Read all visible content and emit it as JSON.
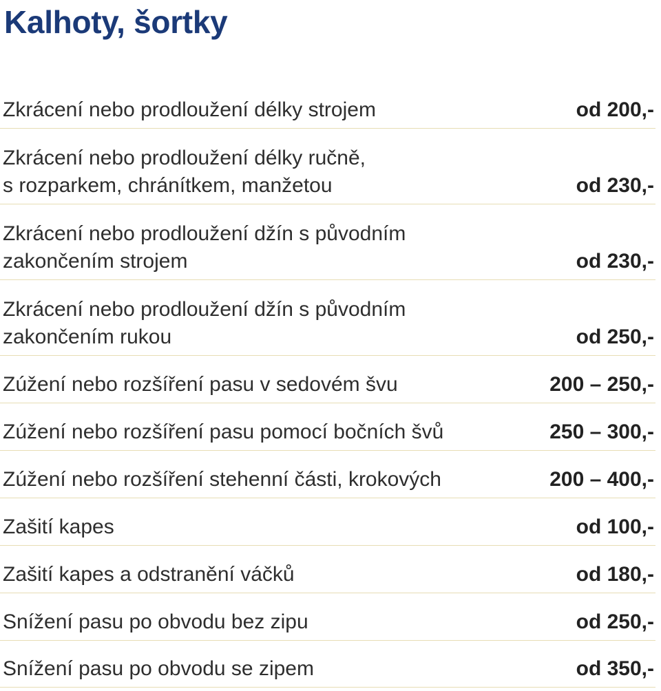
{
  "title": "Kalhoty, šortky",
  "items": [
    {
      "label": "Zkrácení nebo prodloužení délky strojem",
      "price": "od 200,-"
    },
    {
      "label": "Zkrácení nebo prodloužení délky ručně,\ns rozparkem, chránítkem, manžetou",
      "price": "od 230,-"
    },
    {
      "label": "Zkrácení nebo prodloužení džín s původním\nzakončením strojem",
      "price": "od 230,-"
    },
    {
      "label": "Zkrácení nebo prodloužení džín s původním\nzakončením rukou",
      "price": "od 250,-"
    },
    {
      "label": "Zúžení nebo rozšíření pasu v sedovém švu",
      "price": "200 – 250,-"
    },
    {
      "label": "Zúžení nebo rozšíření pasu pomocí bočních švů",
      "price": "250 – 300,-"
    },
    {
      "label": "Zúžení nebo rozšíření stehenní části, krokových",
      "price": "200 – 400,-"
    },
    {
      "label": "Zašití kapes",
      "price": "od 100,-"
    },
    {
      "label": "Zašití kapes a odstranění váčků",
      "price": "od 180,-"
    },
    {
      "label": "Snížení pasu po obvodu bez zipu",
      "price": "od 250,-"
    },
    {
      "label": "Snížení pasu po obvodu se zipem",
      "price": "od 350,-"
    }
  ]
}
